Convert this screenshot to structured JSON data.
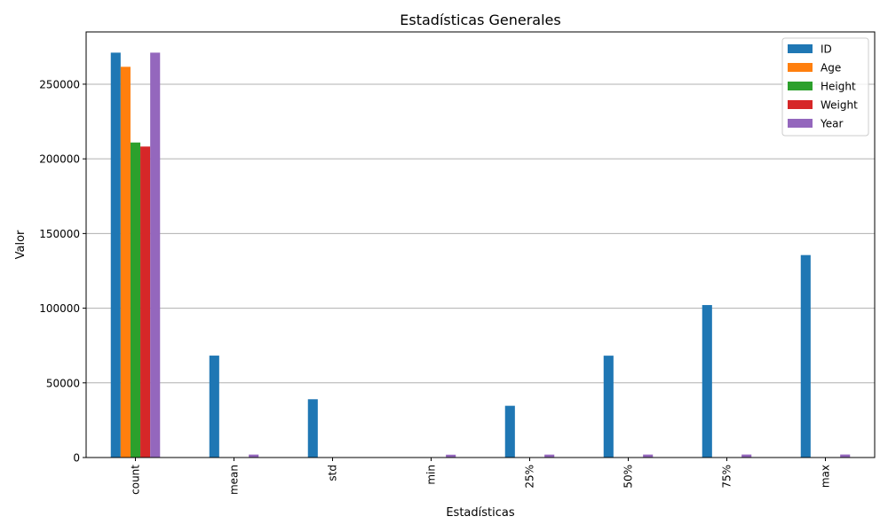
{
  "chart_data": {
    "type": "bar",
    "title": "Estadísticas Generales",
    "xlabel": "Estadísticas",
    "ylabel": "Valor",
    "categories": [
      "count",
      "mean",
      "std",
      "min",
      "25%",
      "50%",
      "75%",
      "max"
    ],
    "ylim": [
      0,
      285000
    ],
    "yticks": [
      0,
      50000,
      100000,
      150000,
      200000,
      250000
    ],
    "ytick_labels": [
      "0",
      "50000",
      "100000",
      "150000",
      "200000",
      "250000"
    ],
    "grid": "y",
    "legend_position": "top-right",
    "series": [
      {
        "name": "ID",
        "color": "#1f77b4",
        "values": [
          271116,
          68248,
          39022,
          1,
          34643,
          68205,
          102097,
          135571
        ]
      },
      {
        "name": "Age",
        "color": "#ff7f0e",
        "values": [
          261642,
          25.6,
          6.4,
          10,
          21,
          24,
          28,
          97
        ]
      },
      {
        "name": "Height",
        "color": "#2ca02c",
        "values": [
          210945,
          175.3,
          10.5,
          127,
          168,
          175,
          183,
          226
        ]
      },
      {
        "name": "Weight",
        "color": "#d62728",
        "values": [
          208241,
          70.7,
          14.3,
          25,
          60,
          70,
          79,
          214
        ]
      },
      {
        "name": "Year",
        "color": "#9467bd",
        "values": [
          271116,
          1978,
          29,
          1896,
          1960,
          1988,
          2002,
          2016
        ]
      }
    ]
  }
}
